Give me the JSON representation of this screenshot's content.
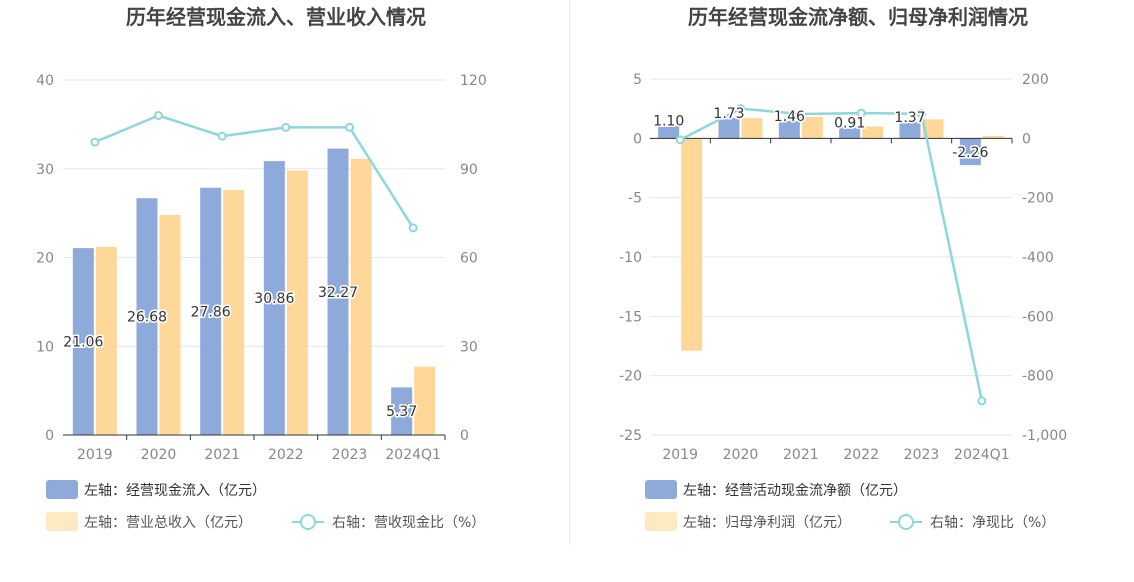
{
  "chart_data": [
    {
      "type": "bar",
      "title": "历年经营现金流入、营业收入情况",
      "categories": [
        "2019",
        "2020",
        "2021",
        "2022",
        "2023",
        "2024Q1"
      ],
      "left_axis": {
        "ticks": [
          "0",
          "10",
          "20",
          "30",
          "40"
        ],
        "min": 0,
        "max": 40
      },
      "right_axis": {
        "ticks": [
          "0",
          "30",
          "60",
          "90",
          "120"
        ],
        "min": 0,
        "max": 120
      },
      "series": [
        {
          "name": "左轴：经营现金流入（亿元）",
          "type": "bar",
          "axis": "left",
          "color": "#8eaadb",
          "values": [
            21.06,
            26.68,
            27.86,
            30.86,
            32.27,
            5.37
          ],
          "labels": [
            "21.06",
            "26.68",
            "27.86",
            "30.86",
            "32.27",
            "5.37"
          ]
        },
        {
          "name": "左轴：营业总收入（亿元）",
          "type": "bar",
          "axis": "left",
          "color": "#ffd899",
          "values": [
            21.2,
            24.8,
            27.6,
            29.8,
            31.1,
            7.7
          ]
        },
        {
          "name": "右轴：营收现金比（%）",
          "type": "line",
          "axis": "right",
          "color": "#8dd7dc",
          "values": [
            99,
            108,
            101,
            104,
            104,
            70
          ]
        }
      ],
      "grid": true
    },
    {
      "type": "bar",
      "title": "历年经营现金流净额、归母净利润情况",
      "categories": [
        "2019",
        "2020",
        "2021",
        "2022",
        "2023",
        "2024Q1"
      ],
      "left_axis": {
        "ticks": [
          "-25",
          "-20",
          "-15",
          "-10",
          "-5",
          "0",
          "5"
        ],
        "min": -25,
        "max": 5
      },
      "right_axis": {
        "ticks": [
          "-1,000",
          "-800",
          "-600",
          "-400",
          "-200",
          "0",
          "200"
        ],
        "min": -1000,
        "max": 200
      },
      "series": [
        {
          "name": "左轴：经营活动现金流净额（亿元）",
          "type": "bar",
          "axis": "left",
          "color": "#8eaadb",
          "values": [
            1.1,
            1.73,
            1.46,
            0.91,
            1.37,
            -2.26
          ],
          "labels": [
            "1.10",
            "1.73",
            "1.46",
            "0.91",
            "1.37",
            "-2.26"
          ]
        },
        {
          "name": "左轴：归母净利润（亿元）",
          "type": "bar",
          "axis": "left",
          "color": "#ffd899",
          "values": [
            -17.9,
            1.7,
            1.8,
            1.0,
            1.6,
            0.2
          ]
        },
        {
          "name": "右轴：净现比（%）",
          "type": "line",
          "axis": "right",
          "color": "#8dd7dc",
          "values": [
            -5,
            100,
            82,
            85,
            83,
            -885
          ]
        }
      ],
      "grid": true
    }
  ]
}
